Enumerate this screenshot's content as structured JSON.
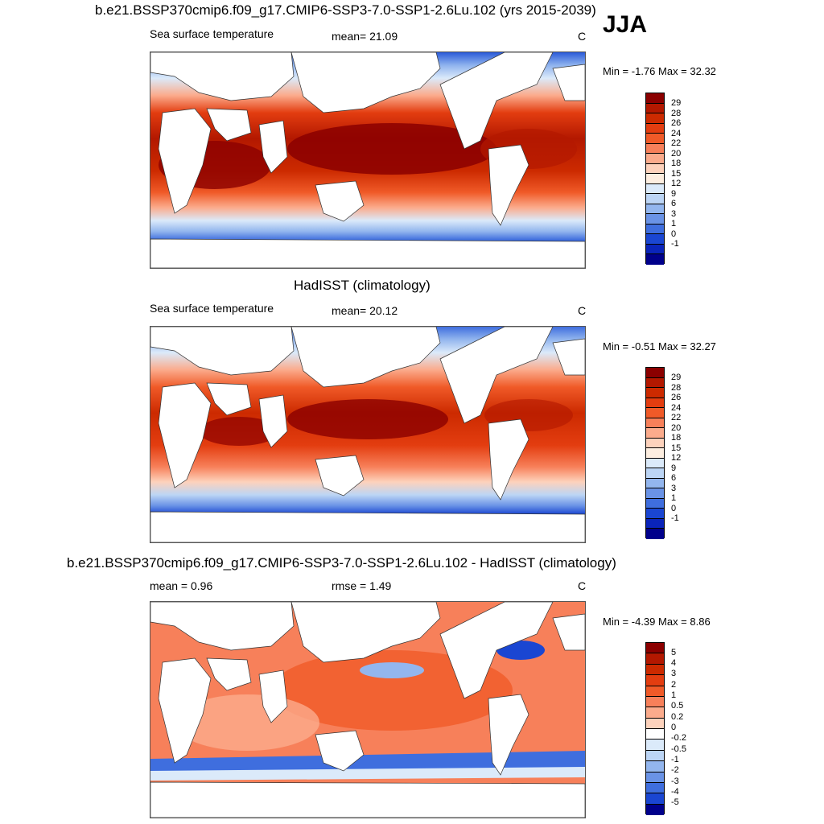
{
  "season": "JJA",
  "panels": [
    {
      "title": "b.e21.BSSP370cmip6.f09_g17.CMIP6-SSP3-7.0-SSP1-2.6Lu.102 (yrs 2015-2039)",
      "left_label": "Sea surface temperature",
      "center_label": "mean=  21.09",
      "units": "C",
      "minmax": "Min =  -1.76 Max =  32.32",
      "levels": [
        "29",
        "28",
        "26",
        "24",
        "22",
        "20",
        "18",
        "15",
        "12",
        "9",
        "6",
        "3",
        "1",
        "0",
        "-1"
      ],
      "kind": "abs"
    },
    {
      "title": "HadISST (climatology)",
      "left_label": "Sea surface temperature",
      "center_label": "mean=  20.12",
      "units": "C",
      "minmax": "Min =  -0.51 Max =  32.27",
      "levels": [
        "29",
        "28",
        "26",
        "24",
        "22",
        "20",
        "18",
        "15",
        "12",
        "9",
        "6",
        "3",
        "1",
        "0",
        "-1"
      ],
      "kind": "abs"
    },
    {
      "title": "b.e21.BSSP370cmip6.f09_g17.CMIP6-SSP3-7.0-SSP1-2.6Lu.102 - HadISST (climatology)",
      "left_label": "mean =   0.96",
      "center_label": "rmse =   1.49",
      "units": "C",
      "minmax": "Min =  -4.39 Max =   8.86",
      "levels": [
        "5",
        "4",
        "3",
        "2",
        "1",
        "0.5",
        "0.2",
        "0",
        "-0.2",
        "-0.5",
        "-1",
        "-2",
        "-3",
        "-4",
        "-5"
      ],
      "kind": "diff"
    }
  ],
  "colors": {
    "abs_scale": [
      "#8b0000",
      "#b31800",
      "#cc2a00",
      "#e33d10",
      "#f05a28",
      "#f7805a",
      "#fbab8c",
      "#fdd2bc",
      "#fdeee0",
      "#dbeafa",
      "#bcd5f5",
      "#93b6ee",
      "#6a93e6",
      "#3f6ede",
      "#1a46d2",
      "#0a24ba",
      "#00008b"
    ],
    "diff_scale": [
      "#8b0000",
      "#b31800",
      "#cc2a00",
      "#e33d10",
      "#f05a28",
      "#f7805a",
      "#fbab8c",
      "#fdd2bc",
      "#ffffff",
      "#dbeafa",
      "#bcd5f5",
      "#93b6ee",
      "#6a93e6",
      "#3f6ede",
      "#1a46d2",
      "#00008b"
    ]
  }
}
